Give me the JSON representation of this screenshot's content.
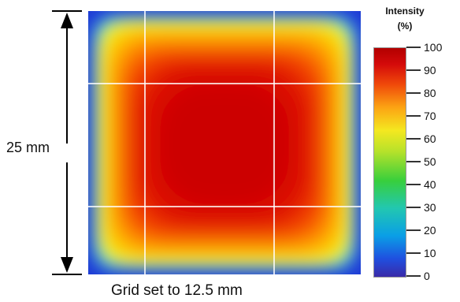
{
  "chart_data": {
    "type": "heatmap",
    "title": "",
    "dimension_label": "25 mm",
    "caption": "Grid set to 12.5 mm",
    "colorbar": {
      "title_line1": "Intensity",
      "title_line2": "(%)",
      "ticks": [
        "0",
        "10",
        "20",
        "30",
        "40",
        "50",
        "60",
        "70",
        "80",
        "90",
        "100"
      ],
      "range": [
        0,
        100
      ]
    },
    "grid_spacing_mm": 12.5,
    "extent_mm": 25,
    "colors": {
      "edge": "#1f3bd6",
      "core": "#d10000"
    }
  }
}
